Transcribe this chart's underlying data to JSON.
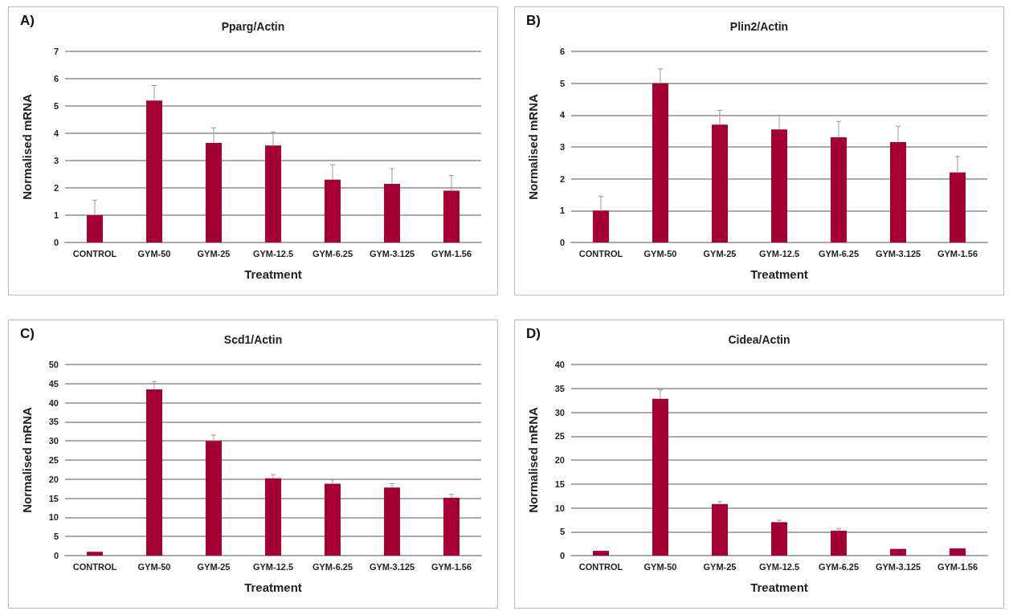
{
  "chart_data": [
    {
      "type": "bar",
      "title": "Pparg/Actin",
      "annotations": [
        "A)"
      ],
      "xlabel": "Treatment",
      "ylabel": "Normalised mRNA",
      "categories": [
        "CONTROL",
        "GYM-50",
        "GYM-25",
        "GYM-12.5",
        "GYM-6.25",
        "GYM-3.125",
        "GYM-1.56"
      ],
      "series": [
        {
          "color": "#a50034",
          "values": [
            1.0,
            5.2,
            3.65,
            3.55,
            2.3,
            2.15,
            1.9
          ],
          "errors": [
            [
              1.0,
              1.55
            ],
            [
              5.2,
              5.75
            ],
            [
              3.65,
              4.2
            ],
            [
              3.55,
              4.05
            ],
            [
              2.3,
              2.85
            ],
            [
              2.15,
              2.7
            ],
            [
              1.9,
              2.45
            ]
          ]
        }
      ],
      "ylim": [
        0,
        7
      ],
      "yticks": [
        0,
        1,
        2,
        3,
        4,
        5,
        6,
        7
      ],
      "grid": "y"
    },
    {
      "type": "bar",
      "title": "Plin2/Actin",
      "annotations": [
        "B)"
      ],
      "xlabel": "Treatment",
      "ylabel": "Normalised mRNA",
      "categories": [
        "CONTROL",
        "GYM-50",
        "GYM-25",
        "GYM-12.5",
        "GYM-6.25",
        "GYM-3.125",
        "GYM-1.56"
      ],
      "series": [
        {
          "color": "#a50034",
          "values": [
            1.0,
            5.0,
            3.7,
            3.55,
            3.3,
            3.15,
            2.2
          ],
          "errors": [
            [
              1.0,
              1.45
            ],
            [
              5.0,
              5.45
            ],
            [
              3.7,
              4.15
            ],
            [
              3.55,
              4.0
            ],
            [
              3.3,
              3.8
            ],
            [
              3.15,
              3.65
            ],
            [
              2.2,
              2.7
            ]
          ]
        }
      ],
      "ylim": [
        0,
        6
      ],
      "yticks": [
        0,
        1,
        2,
        3,
        4,
        5,
        6
      ],
      "grid": "y"
    },
    {
      "type": "bar",
      "title": "Scd1/Actin",
      "annotations": [
        "C)"
      ],
      "xlabel": "Treatment",
      "ylabel": "Normalised mRNA",
      "categories": [
        "CONTROL",
        "GYM-50",
        "GYM-25",
        "GYM-12.5",
        "GYM-6.25",
        "GYM-3.125",
        "GYM-1.56"
      ],
      "series": [
        {
          "color": "#a50034",
          "values": [
            1,
            43.5,
            30,
            20.2,
            18.8,
            17.8,
            15.1
          ],
          "errors": [
            null,
            [
              43.5,
              45.5
            ],
            [
              30,
              31.5
            ],
            [
              20.2,
              21.2
            ],
            [
              18.8,
              19.8
            ],
            [
              17.8,
              18.8
            ],
            [
              15.1,
              16
            ]
          ]
        }
      ],
      "ylim": [
        0,
        50
      ],
      "yticks": [
        0,
        5,
        10,
        15,
        20,
        25,
        30,
        35,
        40,
        45,
        50
      ],
      "grid": "y"
    },
    {
      "type": "bar",
      "title": "Cidea/Actin",
      "annotations": [
        "D)"
      ],
      "xlabel": "Treatment",
      "ylabel": "Normalised mRNA",
      "categories": [
        "CONTROL",
        "GYM-50",
        "GYM-25",
        "GYM-12.5",
        "GYM-6.25",
        "GYM-3.125",
        "GYM-1.56"
      ],
      "series": [
        {
          "color": "#a50034",
          "values": [
            1,
            32.8,
            10.8,
            7,
            5.2,
            1.4,
            1.5
          ],
          "errors": [
            null,
            [
              32.8,
              34.7
            ],
            [
              10.8,
              11.3
            ],
            [
              7,
              7.4
            ],
            [
              5.2,
              5.6
            ],
            null,
            null
          ]
        }
      ],
      "ylim": [
        0,
        40
      ],
      "yticks": [
        0,
        5,
        10,
        15,
        20,
        25,
        30,
        35,
        40
      ],
      "grid": "y"
    }
  ]
}
